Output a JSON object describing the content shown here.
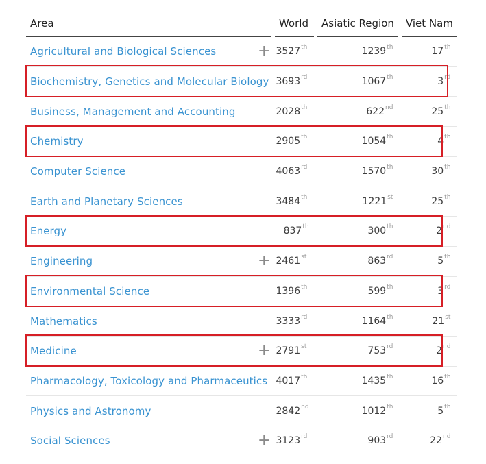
{
  "table": {
    "headers": {
      "area": "Area",
      "world": "World",
      "asiatic": "Asiatic Region",
      "viet": "Viet Nam"
    },
    "rows": [
      {
        "area": "Agricultural and Biological Sciences",
        "expand": "+",
        "world": "3527",
        "world_sfx": "th",
        "asiatic": "1239",
        "asiatic_sfx": "th",
        "viet": "17",
        "viet_sfx": "th",
        "highlighted": false
      },
      {
        "area": "Biochemistry, Genetics and Molecular Biology",
        "expand": "",
        "world": "3693",
        "world_sfx": "rd",
        "asiatic": "1067",
        "asiatic_sfx": "th",
        "viet": "3",
        "viet_sfx": "rd",
        "highlighted": true
      },
      {
        "area": "Business, Management and Accounting",
        "expand": "",
        "world": "2028",
        "world_sfx": "th",
        "asiatic": "622",
        "asiatic_sfx": "nd",
        "viet": "25",
        "viet_sfx": "th",
        "highlighted": false
      },
      {
        "area": "Chemistry",
        "expand": "",
        "world": "2905",
        "world_sfx": "th",
        "asiatic": "1054",
        "asiatic_sfx": "th",
        "viet": "4",
        "viet_sfx": "th",
        "highlighted": true
      },
      {
        "area": "Computer Science",
        "expand": "",
        "world": "4063",
        "world_sfx": "rd",
        "asiatic": "1570",
        "asiatic_sfx": "th",
        "viet": "30",
        "viet_sfx": "th",
        "highlighted": false
      },
      {
        "area": "Earth and Planetary Sciences",
        "expand": "",
        "world": "3484",
        "world_sfx": "th",
        "asiatic": "1221",
        "asiatic_sfx": "st",
        "viet": "25",
        "viet_sfx": "th",
        "highlighted": false
      },
      {
        "area": "Energy",
        "expand": "",
        "world": "837",
        "world_sfx": "th",
        "asiatic": "300",
        "asiatic_sfx": "th",
        "viet": "2",
        "viet_sfx": "nd",
        "highlighted": true
      },
      {
        "area": "Engineering",
        "expand": "+",
        "world": "2461",
        "world_sfx": "st",
        "asiatic": "863",
        "asiatic_sfx": "rd",
        "viet": "5",
        "viet_sfx": "th",
        "highlighted": false
      },
      {
        "area": "Environmental Science",
        "expand": "",
        "world": "1396",
        "world_sfx": "th",
        "asiatic": "599",
        "asiatic_sfx": "th",
        "viet": "3",
        "viet_sfx": "rd",
        "highlighted": true
      },
      {
        "area": "Mathematics",
        "expand": "",
        "world": "3333",
        "world_sfx": "rd",
        "asiatic": "1164",
        "asiatic_sfx": "th",
        "viet": "21",
        "viet_sfx": "st",
        "highlighted": false
      },
      {
        "area": "Medicine",
        "expand": "+",
        "world": "2791",
        "world_sfx": "st",
        "asiatic": "753",
        "asiatic_sfx": "rd",
        "viet": "2",
        "viet_sfx": "nd",
        "highlighted": true
      },
      {
        "area": "Pharmacology, Toxicology and Pharmaceutics",
        "expand": "",
        "world": "4017",
        "world_sfx": "th",
        "asiatic": "1435",
        "asiatic_sfx": "th",
        "viet": "16",
        "viet_sfx": "th",
        "highlighted": false
      },
      {
        "area": "Physics and Astronomy",
        "expand": "",
        "world": "2842",
        "world_sfx": "nd",
        "asiatic": "1012",
        "asiatic_sfx": "th",
        "viet": "5",
        "viet_sfx": "th",
        "highlighted": false
      },
      {
        "area": "Social Sciences",
        "expand": "+",
        "world": "3123",
        "world_sfx": "rd",
        "asiatic": "903",
        "asiatic_sfx": "rd",
        "viet": "22",
        "viet_sfx": "nd",
        "highlighted": false
      }
    ]
  },
  "colors": {
    "link": "#3a93d1",
    "highlight_border": "#d61f26",
    "suffix": "#9c9c9c",
    "header_rule": "#444444"
  },
  "icons": {
    "expand": "plus-icon"
  }
}
